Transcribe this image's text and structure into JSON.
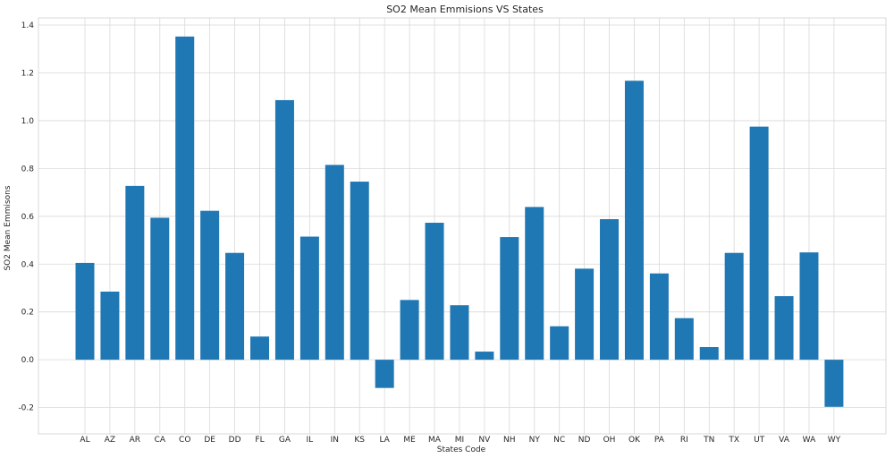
{
  "chart_data": {
    "type": "bar",
    "title": "SO2 Mean Emmisions VS States",
    "xlabel": "States Code",
    "ylabel": "SO2 Mean Emmisons",
    "categories": [
      "AL",
      "AZ",
      "AR",
      "CA",
      "CO",
      "DE",
      "DD",
      "FL",
      "GA",
      "IL",
      "IN",
      "KS",
      "LA",
      "ME",
      "MA",
      "MI",
      "NV",
      "NH",
      "NY",
      "NC",
      "ND",
      "OH",
      "OK",
      "PA",
      "RI",
      "TN",
      "TX",
      "UT",
      "VA",
      "WA",
      "WY"
    ],
    "values": [
      0.405,
      0.285,
      0.727,
      0.594,
      1.352,
      0.623,
      0.447,
      0.097,
      1.086,
      0.515,
      0.815,
      0.745,
      -0.118,
      0.25,
      0.573,
      0.228,
      0.034,
      0.513,
      0.639,
      0.14,
      0.381,
      0.588,
      1.167,
      0.361,
      0.174,
      0.053,
      0.447,
      0.975,
      0.266,
      0.449,
      -0.197
    ],
    "ylim": [
      -0.31,
      1.43
    ],
    "yticks": [
      -0.2,
      0.0,
      0.2,
      0.4,
      0.6,
      0.8,
      1.0,
      1.2,
      1.4
    ],
    "ytick_labels": [
      "-0.2",
      "0.0",
      "0.2",
      "0.4",
      "0.6",
      "0.8",
      "1.0",
      "1.2",
      "1.4"
    ],
    "grid": true,
    "bar_color": "#1f77b4"
  }
}
